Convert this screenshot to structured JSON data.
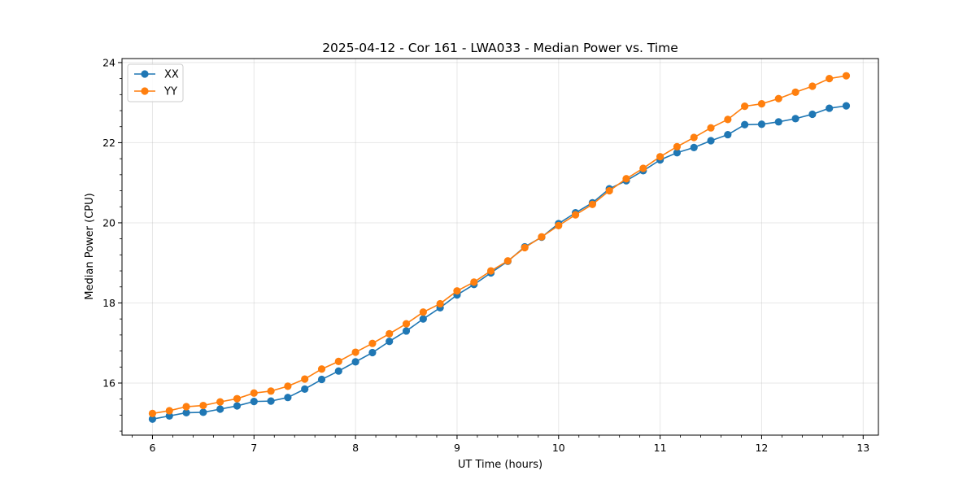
{
  "chart_data": {
    "type": "line",
    "title": "2025-04-12 - Cor 161 - LWA033 - Median Power vs. Time",
    "xlabel": "UT Time (hours)",
    "ylabel": "Median Power (CPU)",
    "xlim": [
      5.7,
      13.15
    ],
    "ylim": [
      14.7,
      24.1
    ],
    "xticks": [
      6,
      7,
      8,
      9,
      10,
      11,
      12,
      13
    ],
    "yticks": [
      16,
      18,
      20,
      22,
      24
    ],
    "xtick_labels": [
      "6",
      "7",
      "8",
      "9",
      "10",
      "11",
      "12",
      "13"
    ],
    "ytick_labels": [
      "16",
      "18",
      "20",
      "22",
      "24"
    ],
    "grid": true,
    "legend_position": "top-left",
    "x": [
      6.0,
      6.1667,
      6.3333,
      6.5,
      6.6667,
      6.8333,
      7.0,
      7.1667,
      7.3333,
      7.5,
      7.6667,
      7.8333,
      8.0,
      8.1667,
      8.3333,
      8.5,
      8.6667,
      8.8333,
      9.0,
      9.1667,
      9.3333,
      9.5,
      9.6667,
      9.8333,
      10.0,
      10.1667,
      10.3333,
      10.5,
      10.6667,
      10.8333,
      11.0,
      11.1667,
      11.3333,
      11.5,
      11.6667,
      11.8333,
      12.0,
      12.1667,
      12.3333,
      12.5,
      12.6667,
      12.8333
    ],
    "series": [
      {
        "name": "XX",
        "color": "#1f77b4",
        "values": [
          15.1,
          15.18,
          15.26,
          15.27,
          15.35,
          15.43,
          15.54,
          15.55,
          15.64,
          15.85,
          16.09,
          16.3,
          16.53,
          16.76,
          17.04,
          17.3,
          17.6,
          17.88,
          18.2,
          18.46,
          18.75,
          19.04,
          19.4,
          19.64,
          19.98,
          20.25,
          20.5,
          20.85,
          21.05,
          21.3,
          21.57,
          21.75,
          21.88,
          22.05,
          22.2,
          22.45,
          22.46,
          22.52,
          22.6,
          22.71,
          22.86,
          22.92
        ]
      },
      {
        "name": "YY",
        "color": "#ff7f0e",
        "values": [
          15.24,
          15.31,
          15.41,
          15.44,
          15.53,
          15.61,
          15.75,
          15.8,
          15.92,
          16.1,
          16.35,
          16.54,
          16.77,
          16.99,
          17.23,
          17.48,
          17.77,
          17.98,
          18.3,
          18.52,
          18.8,
          19.05,
          19.38,
          19.65,
          19.93,
          20.2,
          20.46,
          20.8,
          21.1,
          21.36,
          21.65,
          21.9,
          22.13,
          22.37,
          22.58,
          22.91,
          22.97,
          23.1,
          23.26,
          23.41,
          23.6,
          23.67
        ]
      }
    ]
  }
}
